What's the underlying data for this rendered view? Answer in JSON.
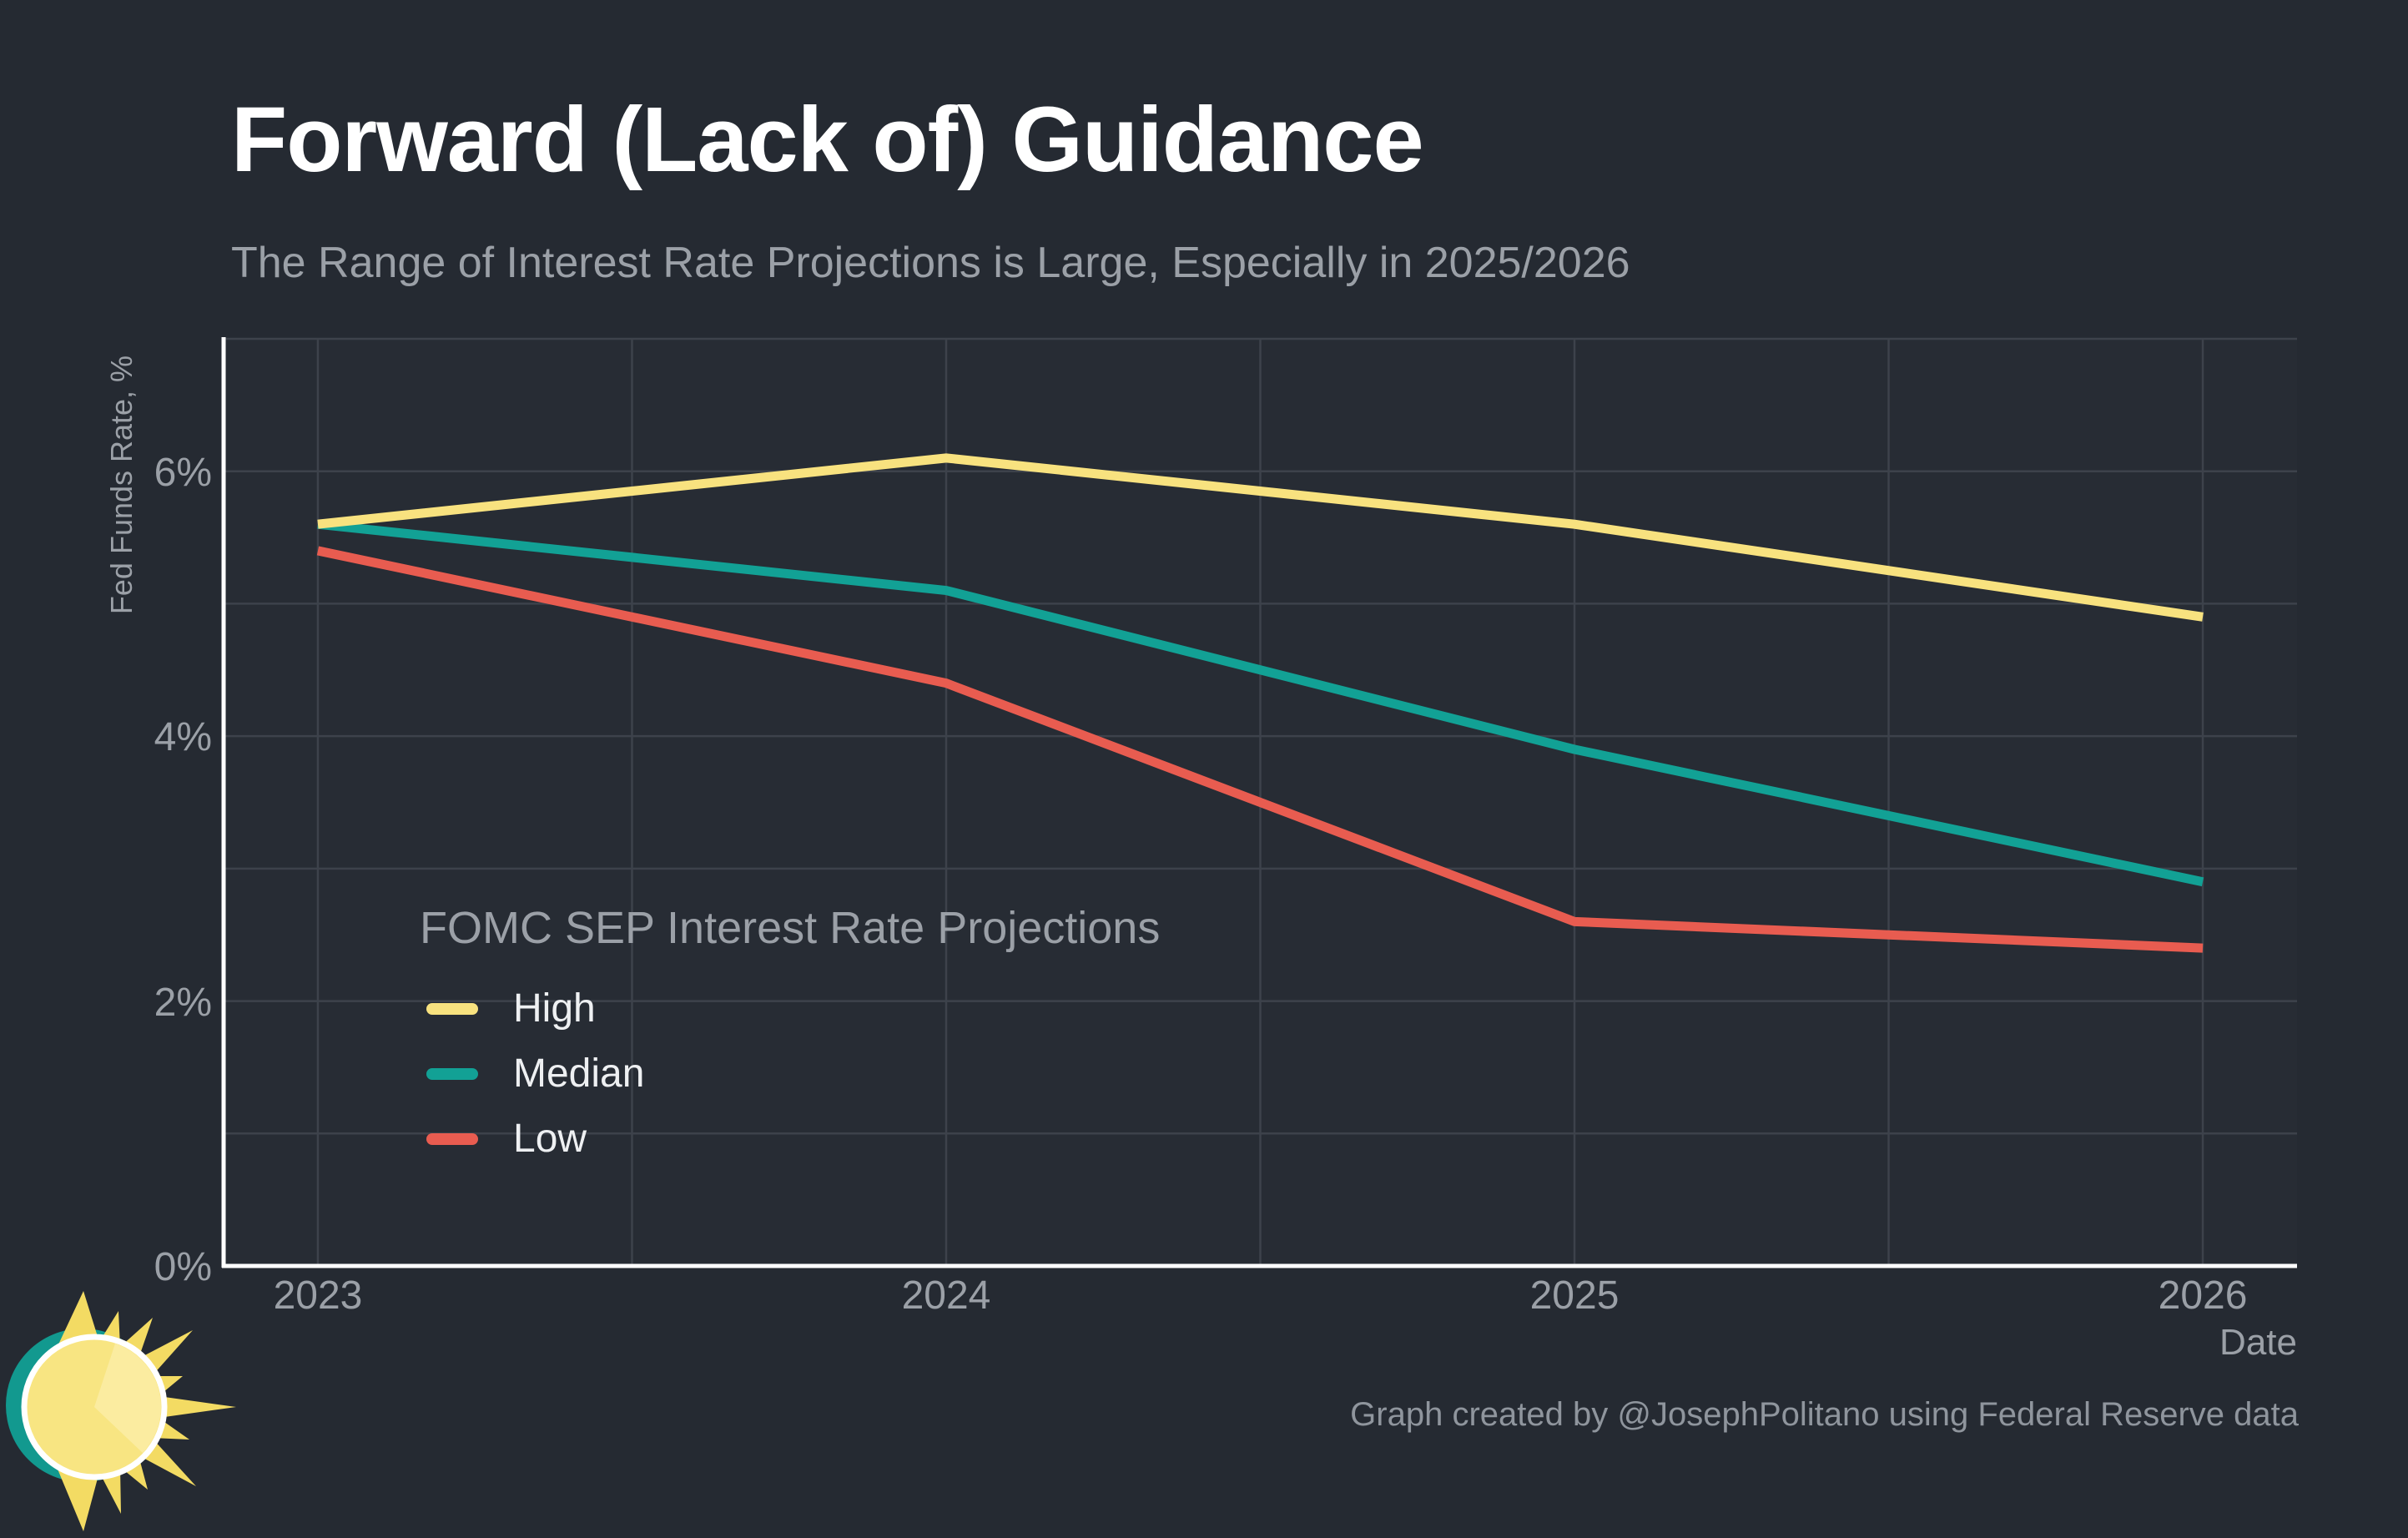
{
  "page": {
    "title": "Forward (Lack of) Guidance",
    "subtitle": "The Range of Interest Rate Projections is Large, Especially in 2025/2026",
    "attribution": "Graph created by @JosephPolitano using Federal Reserve data"
  },
  "colors": {
    "background": "#252a32",
    "panel": "#272c34",
    "grid": "#3d424b",
    "axis": "#ffffff",
    "text_muted": "#9ba0a7",
    "text_footer": "#8f959d",
    "text_bright": "#eef0f2",
    "logo_teal": "#12998f",
    "logo_sun": "#f8e582",
    "logo_spikes": "#f3db63",
    "logo_wedge": "#fbeca0"
  },
  "chart_data": {
    "type": "line",
    "legend_title": "FOMC SEP Interest Rate Projections",
    "xlabel": "Date",
    "ylabel": "Fed Funds Rate, %",
    "x": [
      2023,
      2024,
      2025,
      2026
    ],
    "x_tick_labels": [
      "2023",
      "2024",
      "2025",
      "2026"
    ],
    "y_ticks": [
      0,
      2,
      4,
      6
    ],
    "y_tick_labels": [
      "0%",
      "2%",
      "4%",
      "6%"
    ],
    "ylim": [
      0,
      7
    ],
    "xlim": [
      2022.85,
      2026.15
    ],
    "grid_x_step": 0.5,
    "grid_y_step": 1,
    "grid_on": true,
    "legend_position": "inside bottom-left",
    "series": [
      {
        "name": "High",
        "color": "#f8e27f",
        "values": [
          5.6,
          6.1,
          5.6,
          4.9
        ]
      },
      {
        "name": "Median",
        "color": "#12a195",
        "values": [
          5.6,
          5.1,
          3.9,
          2.9
        ]
      },
      {
        "name": "Low",
        "color": "#e85c50",
        "values": [
          5.4,
          4.4,
          2.6,
          2.4
        ]
      }
    ]
  }
}
